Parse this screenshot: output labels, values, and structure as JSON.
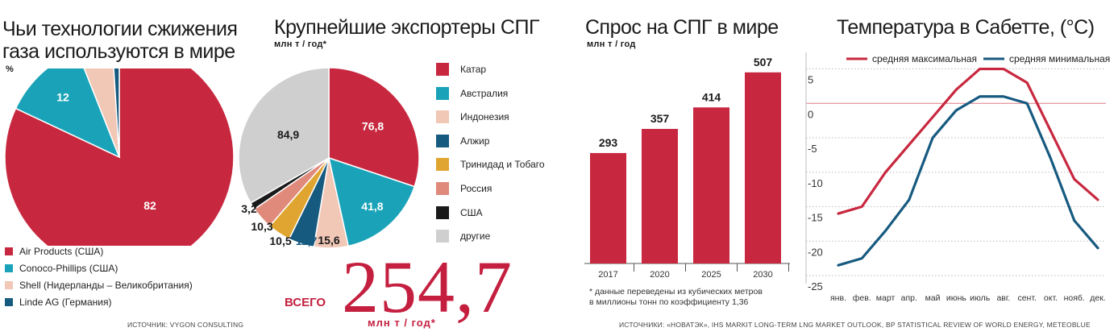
{
  "colors": {
    "red": "#c8283f",
    "teal": "#1aa3b8",
    "peach": "#f1c7b6",
    "navy": "#175a80",
    "amber": "#e0a530",
    "salmon": "#e08a7c",
    "black": "#1a1a1a",
    "grey": "#cfcfcf",
    "axis_red": "#e07a84",
    "grid": "#bbbbbb"
  },
  "panel1": {
    "title_line1": "Чьи технологии сжижения",
    "title_line2": "газа используются в мире",
    "unit": "%",
    "legend": [
      {
        "label": "Air Products (США)",
        "color": "#c8283f"
      },
      {
        "label": "Conoco-Phillips (США)",
        "color": "#1aa3b8"
      },
      {
        "label": "Shell (Нидерланды – Великобритания)",
        "color": "#f1c7b6"
      },
      {
        "label": "Linde AG (Германия)",
        "color": "#175a80"
      }
    ],
    "source": "ИСТОЧНИК: VYGON CONSULTING"
  },
  "panel2": {
    "title": "Крупнейшие экспортеры СПГ",
    "unit": "млн т / год*",
    "legend": [
      {
        "label": "Катар",
        "color": "#c8283f"
      },
      {
        "label": "Австралия",
        "color": "#1aa3b8"
      },
      {
        "label": "Индонезия",
        "color": "#f1c7b6"
      },
      {
        "label": "Алжир",
        "color": "#175a80"
      },
      {
        "label": "Тринидад и Тобаго",
        "color": "#e0a530"
      },
      {
        "label": "Россия",
        "color": "#e08a7c"
      },
      {
        "label": "США",
        "color": "#1a1a1a"
      },
      {
        "label": "другие",
        "color": "#cfcfcf"
      }
    ],
    "total_label": "ВСЕГО",
    "total_value": "254,7",
    "total_unit": "млн т / год*"
  },
  "panel3": {
    "title": "Спрос на СПГ в мире",
    "unit": "млн т / год",
    "note_line1": "* данные переведены из кубических метров",
    "note_line2": "в миллионы тонн по коэффициенту 1,36"
  },
  "panel4": {
    "title": "Температура в Сабетте, (°С)",
    "source": "ИСТОЧНИКИ: «НОВАТЭК», IHS MARKIT LONG-TERM LNG MARKET OUTLOOK, BP STATISTICAL REVIEW OF WORLD ENERGY, METEOBLUE"
  },
  "chart_data": [
    {
      "type": "pie",
      "categories": [
        "Air Products (США)",
        "Conoco-Phillips (США)",
        "Shell (Нидерланды – Великобритания)",
        "Linde AG (Германия)"
      ],
      "values": [
        82,
        12,
        5,
        1
      ],
      "labels": [
        "82",
        "12",
        "5",
        "1"
      ]
    },
    {
      "type": "pie",
      "categories": [
        "Катар",
        "Австралия",
        "Индонезия",
        "Алжир",
        "Тринидад и Тобаго",
        "Россия",
        "США",
        "другие"
      ],
      "values": [
        76.8,
        41.8,
        15.6,
        11.7,
        10.5,
        10.3,
        3.2,
        84.9
      ],
      "labels": [
        "76,8",
        "41,8",
        "15,6",
        "11,7",
        "10,5",
        "10,3",
        "3,2",
        "84,9"
      ]
    },
    {
      "type": "bar",
      "categories": [
        "2017",
        "2020",
        "2025",
        "2030"
      ],
      "values": [
        293,
        357,
        414,
        507
      ],
      "ylim": [
        0,
        560
      ]
    },
    {
      "type": "line",
      "categories": [
        "янв.",
        "фев.",
        "март",
        "апр.",
        "май",
        "июнь",
        "июль",
        "авг.",
        "сент.",
        "окт.",
        "нояб.",
        "дек."
      ],
      "yticks": [
        5,
        0,
        -5,
        -10,
        -15,
        -20,
        -25
      ],
      "ylim": [
        -25,
        6
      ],
      "series": [
        {
          "name": "средняя максимальная",
          "values": [
            -16,
            -15,
            -10,
            -6,
            -2,
            2,
            5,
            5,
            3,
            -4,
            -11,
            -14
          ]
        },
        {
          "name": "средняя минимальная",
          "values": [
            -23.5,
            -22.5,
            -18.5,
            -14,
            -5,
            -1,
            1,
            1,
            0,
            -8,
            -17,
            -21
          ]
        }
      ]
    }
  ]
}
